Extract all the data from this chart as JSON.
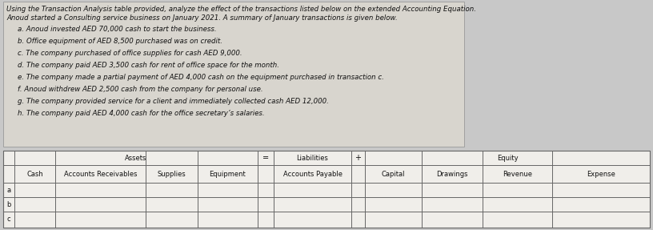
{
  "title_line1": "Using the Transaction Analysis table provided, analyze the effect of the transactions listed below on the extended Accounting Equation.",
  "title_line2": "Anoud started a Consulting service business on January 2021. A summary of January transactions is given below.",
  "transactions": [
    "a. Anoud invested AED 70,000 cash to start the business.",
    "b. Office equipment of AED 8,500 purchased was on credit.",
    "c. The company purchased of office supplies for cash AED 9,000.",
    "d. The company paid AED 3,500 cash for rent of office space for the month.",
    "e. The company made a partial payment of AED 4,000 cash on the equipment purchased in transaction c.",
    "f. Anoud withdrew AED 2,500 cash from the company for personal use.",
    "g. The company provided service for a client and immediately collected cash AED 12,000.",
    "h. The company paid AED 4,000 cash for the office secretary’s salaries."
  ],
  "table_section_assets": "Assets",
  "table_section_liabilities": "Liabilities",
  "table_section_equity": "Equity",
  "col_headers": [
    "Cash",
    "Accounts Receivables",
    "Supplies",
    "Equipment",
    "Accounts Payable",
    "Capital",
    "Drawings",
    "Revenue",
    "Expense"
  ],
  "row_labels": [
    "a",
    "b",
    "c"
  ],
  "equals_sign": "=",
  "plus_sign": "+",
  "bg_color": "#c8c8c8",
  "text_area_bg": "#d8d5ce",
  "table_bg_color": "#f0eeea",
  "text_color": "#111111",
  "border_color": "#666666",
  "title_fontsize": 6.2,
  "trans_fontsize": 6.2,
  "table_fontsize": 6.0,
  "fig_width": 8.16,
  "fig_height": 2.87,
  "dpi": 100
}
